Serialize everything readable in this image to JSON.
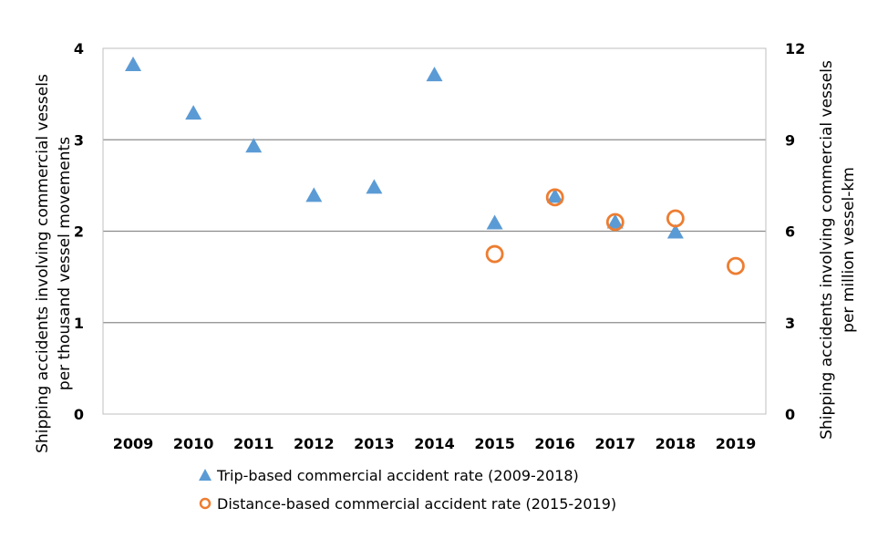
{
  "chart_data": {
    "type": "scatter",
    "categories": [
      "2009",
      "2010",
      "2011",
      "2012",
      "2013",
      "2014",
      "2015",
      "2016",
      "2017",
      "2018",
      "2019"
    ],
    "y_left": {
      "label_line1": "Shipping  accidents involving commercial vessels",
      "label_line2": "per thousand vessel movements",
      "ylim": [
        0,
        4
      ],
      "ticks": [
        "0",
        "1",
        "2",
        "3",
        "4"
      ]
    },
    "y_right": {
      "label_line1": "Shipping  accidents involving commercial vessels",
      "label_line2": "per million vessel-km",
      "ylim": [
        0,
        12
      ],
      "ticks": [
        "0",
        "3",
        "6",
        "9",
        "12"
      ]
    },
    "grid": true,
    "legend_position": "bottom",
    "series": [
      {
        "name": "Trip-based commercial accident rate (2009-2018)",
        "axis": "left",
        "marker": "triangle",
        "color": "#5B9BD5",
        "points": [
          {
            "x": "2009",
            "y": 3.82
          },
          {
            "x": "2010",
            "y": 3.29
          },
          {
            "x": "2011",
            "y": 2.93
          },
          {
            "x": "2012",
            "y": 2.39
          },
          {
            "x": "2013",
            "y": 2.48
          },
          {
            "x": "2014",
            "y": 3.71
          },
          {
            "x": "2015",
            "y": 2.09
          },
          {
            "x": "2016",
            "y": 2.38
          },
          {
            "x": "2017",
            "y": 2.1
          },
          {
            "x": "2018",
            "y": 1.99
          }
        ]
      },
      {
        "name": "Distance-based commercial accident rate (2015-2019)",
        "axis": "right",
        "marker": "circle-open",
        "color": "#ED7D31",
        "points": [
          {
            "x": "2015",
            "y": 5.25
          },
          {
            "x": "2016",
            "y": 7.11
          },
          {
            "x": "2017",
            "y": 6.3
          },
          {
            "x": "2018",
            "y": 6.42
          },
          {
            "x": "2019",
            "y": 4.86
          }
        ]
      }
    ]
  }
}
